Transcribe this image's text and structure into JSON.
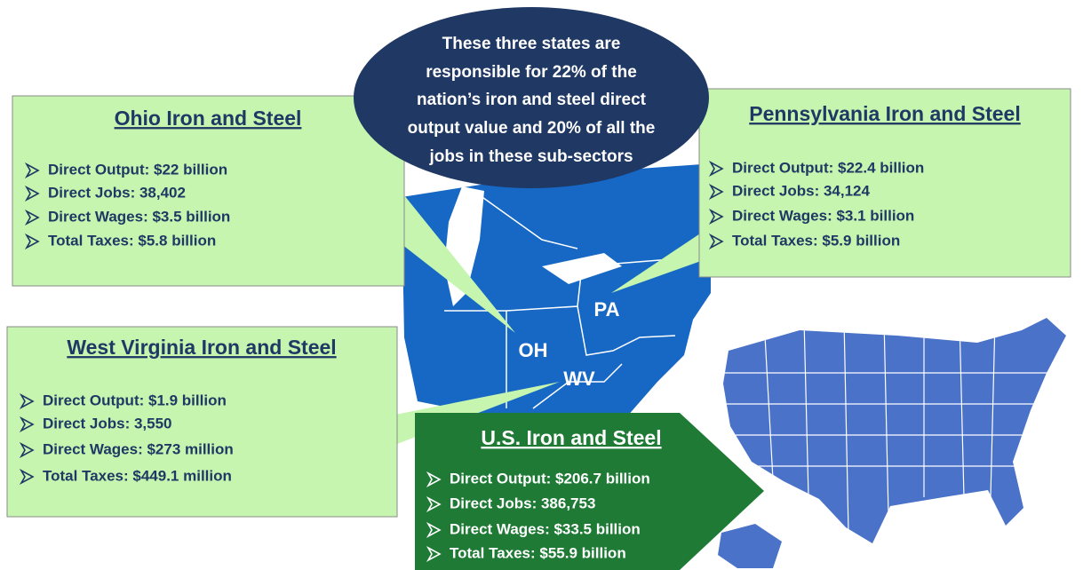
{
  "oval_text": [
    "These three states are",
    "responsible for 22% of the",
    "nation’s iron and steel direct",
    "output value and 20% of all the",
    "jobs in these sub-sectors"
  ],
  "boxes": [
    {
      "title": "Ohio Iron and Steel",
      "bullets": [
        "Direct Output: $22 billion",
        "Direct Jobs: 38,402",
        "Direct Wages: $3.5 billion",
        "Total Taxes: $5.8 billion"
      ]
    },
    {
      "title": "Pennsylvania Iron and Steel",
      "bullets": [
        "Direct Output: $22.4 billion",
        "Direct Jobs: 34,124",
        "Direct Wages: $3.1 billion",
        "Total Taxes: $5.9 billion"
      ]
    },
    {
      "title": "West Virginia Iron and Steel",
      "bullets": [
        "Direct Output: $1.9 billion",
        "Direct Jobs: 3,550",
        "Direct Wages: $273 million",
        "Total Taxes: $449.1 million"
      ]
    },
    {
      "title": "U.S. Iron and Steel",
      "bullets": [
        "Direct Output: $206.7 billion",
        "Direct Jobs: 386,753",
        "Direct Wages: $33.5 billion",
        "Total Taxes: $55.9 billion"
      ]
    }
  ],
  "state_labels": [
    "PA",
    "OH",
    "WV"
  ]
}
